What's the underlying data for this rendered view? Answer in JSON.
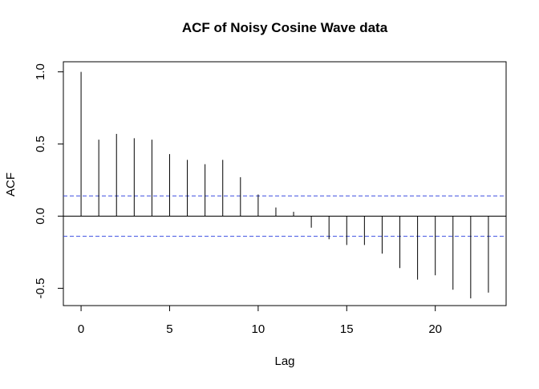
{
  "chart_data": {
    "type": "bar",
    "title": "ACF of Noisy Cosine Wave data",
    "xlabel": "Lag",
    "ylabel": "ACF",
    "xlim": [
      -1,
      24
    ],
    "ylim": [
      -0.62,
      1.07
    ],
    "x_ticks": [
      "0",
      "5",
      "10",
      "15",
      "20"
    ],
    "y_ticks": [
      "-0.5",
      "0.0",
      "0.5",
      "1.0"
    ],
    "confidence_bound": 0.14,
    "grid": false,
    "series": [
      {
        "lags": [
          0,
          1,
          2,
          3,
          4,
          5,
          6,
          7,
          8,
          9,
          10,
          11,
          12,
          13,
          14,
          15,
          16,
          17,
          18,
          19,
          20,
          21,
          22,
          23
        ],
        "values": [
          1.0,
          0.53,
          0.57,
          0.54,
          0.53,
          0.43,
          0.39,
          0.36,
          0.39,
          0.27,
          0.15,
          0.06,
          0.03,
          -0.08,
          -0.16,
          -0.2,
          -0.2,
          -0.26,
          -0.36,
          -0.44,
          -0.41,
          -0.51,
          -0.57,
          -0.53
        ]
      }
    ],
    "colors": {
      "spike": "#000000",
      "confidence": "#3b4de0",
      "zero_line": "#000000"
    }
  }
}
